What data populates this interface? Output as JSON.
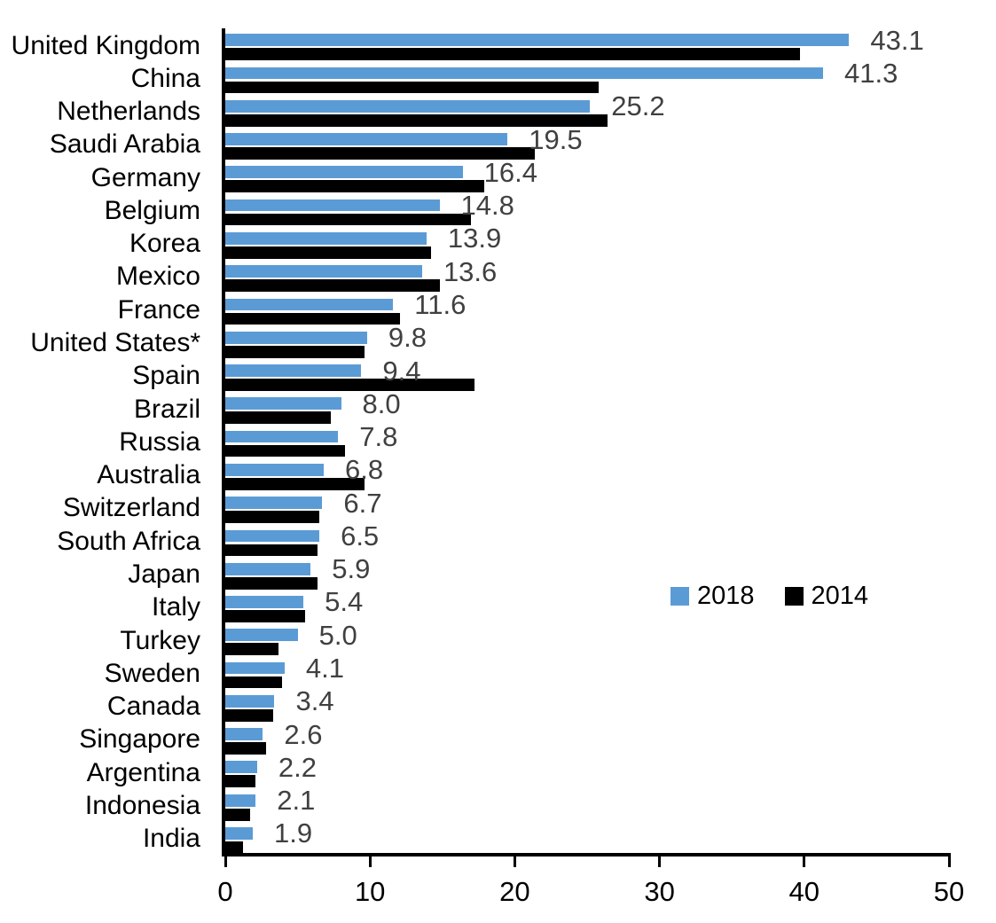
{
  "chart_data": {
    "type": "bar",
    "orientation": "horizontal",
    "title": "",
    "xlabel": "",
    "ylabel": "",
    "xlim": [
      0,
      50
    ],
    "x_ticks": [
      0,
      10,
      20,
      30,
      40,
      50
    ],
    "x_tick_labels": [
      "0",
      "10",
      "20",
      "30",
      "40",
      "50"
    ],
    "grid": false,
    "legend_position": "middle-right",
    "categories": [
      "United Kingdom",
      "China",
      "Netherlands",
      "Saudi Arabia",
      "Germany",
      "Belgium",
      "Korea",
      "Mexico",
      "France",
      "United States*",
      "Spain",
      "Brazil",
      "Russia",
      "Australia",
      "Switzerland",
      "South Africa",
      "Japan",
      "Italy",
      "Turkey",
      "Sweden",
      "Canada",
      "Singapore",
      "Argentina",
      "Indonesia",
      "India"
    ],
    "series": [
      {
        "name": "2018",
        "color": "#5B9BD5",
        "values": [
          43.1,
          41.3,
          25.2,
          19.5,
          16.4,
          14.8,
          13.9,
          13.6,
          11.6,
          9.8,
          9.4,
          8.0,
          7.8,
          6.8,
          6.7,
          6.5,
          5.9,
          5.4,
          5.0,
          4.1,
          3.4,
          2.6,
          2.2,
          2.1,
          1.9
        ],
        "data_labels": [
          "43.1",
          "41.3",
          "25.2",
          "19.5",
          "16.4",
          "14.8",
          "13.9",
          "13.6",
          "11.6",
          "9.8",
          "9.4",
          "8.0",
          "7.8",
          "6.8",
          "6.7",
          "6.5",
          "5.9",
          "5.4",
          "5.0",
          "4.1",
          "3.4",
          "2.6",
          "2.2",
          "2.1",
          "1.9"
        ]
      },
      {
        "name": "2014",
        "color": "#000000",
        "values": [
          39.7,
          25.8,
          26.4,
          21.4,
          17.9,
          17.0,
          14.2,
          14.8,
          12.1,
          9.6,
          17.2,
          7.3,
          8.3,
          9.6,
          6.5,
          6.4,
          6.4,
          5.5,
          3.7,
          3.9,
          3.3,
          2.8,
          2.1,
          1.7,
          1.2
        ]
      }
    ]
  },
  "colors": {
    "series_2018": "#5B9BD5",
    "series_2014": "#000000",
    "value_label": "#404040",
    "axis": "#000000",
    "background": "#ffffff"
  }
}
